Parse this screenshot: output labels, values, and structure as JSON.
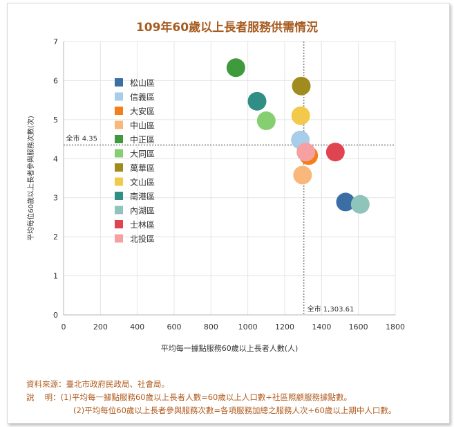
{
  "chart_data": {
    "type": "scatter",
    "title": "109年60歲以上長者服務供需情況",
    "xlabel": "平均每一據點服務60歲以上長者人數(人)",
    "ylabel": "平均每位60歲以上長者參與服務次數(次)",
    "xlim": [
      0,
      1800
    ],
    "ylim": [
      0,
      7
    ],
    "xticks": [
      0,
      200,
      400,
      600,
      800,
      1000,
      1200,
      1400,
      1600,
      1800
    ],
    "yticks": [
      0,
      1,
      2,
      3,
      4,
      5,
      6,
      7
    ],
    "grid": true,
    "legend_position": "upper-left",
    "reference_lines": [
      {
        "axis": "x",
        "value": 1303.61,
        "label": "全市 1,303.61"
      },
      {
        "axis": "y",
        "value": 4.35,
        "label": "全市 4.35"
      }
    ],
    "series": [
      {
        "name": "松山區",
        "color": "#3b6ea5",
        "x": 1530,
        "y": 2.89
      },
      {
        "name": "信義區",
        "color": "#a8cdea",
        "x": 1285,
        "y": 4.48
      },
      {
        "name": "大安區",
        "color": "#f27f1b",
        "x": 1330,
        "y": 4.08
      },
      {
        "name": "中山區",
        "color": "#f9b77c",
        "x": 1297,
        "y": 3.58
      },
      {
        "name": "中正區",
        "color": "#3f9a3e",
        "x": 935,
        "y": 6.33
      },
      {
        "name": "大同區",
        "color": "#86cf70",
        "x": 1100,
        "y": 4.97
      },
      {
        "name": "萬華區",
        "color": "#a08b1e",
        "x": 1290,
        "y": 5.86
      },
      {
        "name": "文山區",
        "color": "#f3c94b",
        "x": 1287,
        "y": 5.1
      },
      {
        "name": "南港區",
        "color": "#2f8f85",
        "x": 1050,
        "y": 5.47
      },
      {
        "name": "內湖區",
        "color": "#8fc4bb",
        "x": 1610,
        "y": 2.83
      },
      {
        "name": "士林區",
        "color": "#df4450",
        "x": 1475,
        "y": 4.17
      },
      {
        "name": "北投區",
        "color": "#f7a0a2",
        "x": 1315,
        "y": 4.17
      }
    ]
  },
  "notes": {
    "source": "資料來源：臺北市政府民政局、社會局。",
    "note1": "說　 明：(1)平均每一據點服務60歲以上長者人數=60歲以上人口數÷社區照顧服務據點數。",
    "note2": "(2)平均每位60歲以上長者參與服務次數=各項服務加總之服務人次÷60歲以上期中人口數。"
  }
}
